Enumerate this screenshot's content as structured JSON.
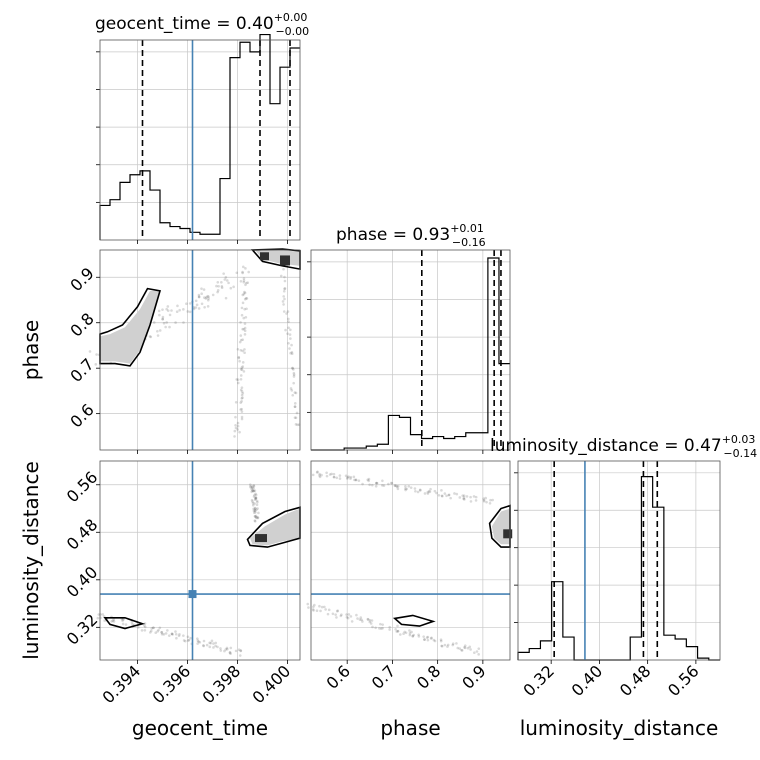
{
  "chart_data": {
    "type": "scatter",
    "layout": "corner",
    "parameters": [
      "geocent_time",
      "phase",
      "luminosity_distance"
    ],
    "axes": {
      "geocent_time": {
        "label": "geocent_time",
        "range": [
          0.3925,
          0.4005
        ],
        "ticks": [
          0.394,
          0.396,
          0.398,
          0.4
        ],
        "tick_labels": [
          "0.394",
          "0.396",
          "0.398",
          "0.400"
        ]
      },
      "phase": {
        "label": "phase",
        "range": [
          0.52,
          0.96
        ],
        "ticks": [
          0.6,
          0.7,
          0.8,
          0.9
        ],
        "tick_labels": [
          "0.6",
          "0.7",
          "0.8",
          "0.9"
        ]
      },
      "luminosity_distance": {
        "label": "luminosity_distance",
        "range": [
          0.265,
          0.6
        ],
        "ticks": [
          0.32,
          0.4,
          0.48,
          0.56
        ],
        "tick_labels": [
          "0.32",
          "0.40",
          "0.48",
          "0.56"
        ]
      }
    },
    "titles": [
      {
        "param": "geocent_time",
        "text": "geocent_time = 0.40",
        "plus": "+0.00",
        "minus": "−0.00"
      },
      {
        "param": "phase",
        "text": "phase = 0.93",
        "plus": "+0.01",
        "minus": "−0.16"
      },
      {
        "param": "luminosity_distance",
        "text": "luminosity_distance = 0.47",
        "plus": "+0.03",
        "minus": "−0.14"
      }
    ],
    "truths": {
      "geocent_time": 0.3962,
      "luminosity_distance": 0.376
    },
    "quantiles": {
      "geocent_time": [
        0.3942,
        0.3989,
        0.4001
      ],
      "phase": [
        0.765,
        0.925,
        0.94
      ],
      "luminosity_distance": [
        0.325,
        0.473,
        0.496
      ]
    },
    "histograms": {
      "geocent_time": {
        "edges": [
          0.3925,
          0.3929,
          0.3933,
          0.3937,
          0.3941,
          0.3945,
          0.3949,
          0.3953,
          0.3957,
          0.3961,
          0.3965,
          0.3969,
          0.3973,
          0.3977,
          0.3981,
          0.3985,
          0.3989,
          0.3993,
          0.3997,
          0.4001,
          0.4005
        ],
        "counts": [
          0.18,
          0.21,
          0.3,
          0.34,
          0.36,
          0.26,
          0.09,
          0.07,
          0.06,
          0.04,
          0.03,
          0.03,
          0.32,
          0.95,
          1.03,
          0.98,
          1.07,
          0.71,
          0.9,
          1.0
        ]
      },
      "phase": {
        "edges": [
          0.52,
          0.5444,
          0.5689,
          0.5933,
          0.6178,
          0.6422,
          0.6667,
          0.6911,
          0.7156,
          0.74,
          0.7644,
          0.7889,
          0.8133,
          0.8378,
          0.8622,
          0.8867,
          0.9111,
          0.9356,
          0.96
        ],
        "counts": [
          0.0,
          0.0,
          0.0,
          0.01,
          0.01,
          0.02,
          0.03,
          0.18,
          0.17,
          0.08,
          0.06,
          0.07,
          0.06,
          0.07,
          0.09,
          0.09,
          1.0,
          0.45
        ]
      },
      "luminosity_distance": {
        "edges": [
          0.265,
          0.2836,
          0.3022,
          0.3208,
          0.3394,
          0.358,
          0.3767,
          0.3953,
          0.4139,
          0.4325,
          0.4511,
          0.4697,
          0.4883,
          0.5069,
          0.5256,
          0.5442,
          0.5628,
          0.5814,
          0.6
        ],
        "counts": [
          0.04,
          0.06,
          0.1,
          0.41,
          0.12,
          0.0,
          0.0,
          0.0,
          0.0,
          0.0,
          0.12,
          0.96,
          0.8,
          0.13,
          0.11,
          0.07,
          0.01,
          0.0
        ]
      }
    },
    "grid": true
  }
}
